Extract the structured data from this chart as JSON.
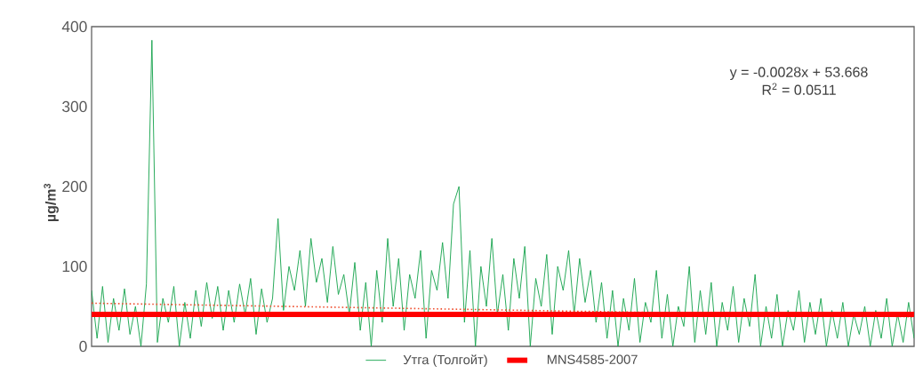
{
  "chart_data": {
    "type": "line",
    "ylabel": "µg/m$^{3}$",
    "ylim": [
      0,
      400
    ],
    "yticks": [
      0,
      100,
      200,
      300,
      400
    ],
    "categories": [
      null,
      null,
      null,
      null,
      null,
      null,
      null,
      null,
      null,
      null,
      null,
      null,
      null,
      null,
      null,
      null,
      null,
      null,
      null,
      null,
      null,
      null,
      null,
      null,
      null,
      null,
      null,
      null,
      null,
      null,
      null,
      null,
      null,
      null,
      null,
      null,
      null,
      null,
      null,
      null,
      null,
      null,
      null,
      null,
      null,
      null,
      null,
      null,
      null,
      null,
      null,
      null,
      null,
      null,
      null,
      null,
      null,
      null,
      null,
      null,
      null,
      null,
      null,
      null,
      null,
      null,
      null,
      null,
      null,
      null,
      null,
      null,
      null,
      null,
      null,
      null,
      null,
      null,
      null,
      null,
      null,
      null,
      null,
      null,
      null,
      null,
      null,
      null,
      null,
      null,
      null,
      null,
      null,
      null,
      null,
      null,
      null,
      null,
      null,
      null,
      null,
      null,
      null,
      null,
      null,
      null,
      null,
      null,
      null,
      null,
      null,
      null,
      null,
      null,
      null,
      null,
      null,
      null,
      null,
      null,
      null,
      null,
      null,
      null,
      null,
      null,
      null,
      null,
      null,
      null,
      null,
      null,
      null,
      null,
      null,
      null,
      null,
      null,
      null,
      null,
      null,
      null,
      null,
      null,
      null,
      null,
      null,
      null,
      null,
      null,
      null
    ],
    "tick_labels": "y",
    "grid": false,
    "legend": "bottom",
    "marker": "none",
    "annotations": [
      "y = -0.0028x + 53.668",
      "R$^{2}$ = 0.0511"
    ],
    "ref_lines": [
      {
        "axis": "y",
        "value": 40,
        "label": "MNS4585-2007",
        "color": "#ff0000"
      }
    ],
    "series": [
      {
        "name": "Утга (Толгойт)",
        "color": "#1aa550",
        "line_style": "solid",
        "values": [
          70,
          10,
          75,
          5,
          60,
          20,
          72,
          15,
          50,
          0,
          78,
          383,
          5,
          60,
          30,
          75,
          0,
          55,
          10,
          70,
          25,
          80,
          35,
          75,
          20,
          70,
          30,
          78,
          40,
          85,
          15,
          72,
          30,
          60,
          160,
          45,
          100,
          70,
          120,
          50,
          135,
          80,
          110,
          55,
          125,
          65,
          90,
          40,
          105,
          20,
          80,
          0,
          95,
          30,
          135,
          50,
          110,
          20,
          90,
          60,
          120,
          10,
          95,
          70,
          130,
          60,
          178,
          200,
          30,
          120,
          0,
          100,
          50,
          135,
          40,
          90,
          20,
          110,
          60,
          125,
          0,
          85,
          50,
          115,
          15,
          100,
          70,
          120,
          40,
          110,
          55,
          95,
          30,
          80,
          10,
          70,
          0,
          60,
          20,
          85,
          5,
          55,
          30,
          95,
          10,
          65,
          0,
          50,
          25,
          100,
          5,
          70,
          15,
          80,
          0,
          55,
          20,
          75,
          5,
          60,
          25,
          90,
          0,
          50,
          10,
          65,
          0,
          45,
          20,
          70,
          5,
          55,
          15,
          60,
          0,
          45,
          10,
          55,
          0,
          40,
          15,
          50,
          0,
          45,
          10,
          60,
          0,
          40,
          5,
          55,
          10
        ]
      },
      {
        "color": "#f05030",
        "line_style": "dotted",
        "values": [
          54,
          null,
          null,
          null,
          null,
          null,
          null,
          null,
          null,
          null,
          null,
          null,
          null,
          null,
          null,
          null,
          null,
          null,
          null,
          null,
          null,
          null,
          null,
          null,
          null,
          null,
          null,
          null,
          null,
          null,
          null,
          null,
          null,
          null,
          null,
          null,
          null,
          null,
          null,
          null,
          null,
          null,
          null,
          null,
          null,
          null,
          null,
          null,
          null,
          null,
          null,
          null,
          null,
          null,
          null,
          null,
          null,
          null,
          null,
          null,
          null,
          null,
          null,
          null,
          null,
          null,
          null,
          null,
          null,
          null,
          null,
          null,
          null,
          null,
          null,
          null,
          null,
          null,
          null,
          null,
          null,
          null,
          null,
          null,
          null,
          null,
          null,
          null,
          null,
          null,
          null,
          null,
          null,
          null,
          null,
          null,
          null,
          null,
          null,
          null,
          null,
          null,
          null,
          null,
          null,
          null,
          null,
          null,
          null,
          null,
          null,
          null,
          null,
          null,
          null,
          null,
          null,
          null,
          null,
          null,
          null,
          null,
          null,
          null,
          null,
          null,
          null,
          null,
          null,
          null,
          null,
          null,
          null,
          null,
          null,
          null,
          null,
          null,
          null,
          null,
          null,
          null,
          null,
          null,
          null,
          null,
          null,
          null,
          null,
          null,
          37
        ]
      }
    ]
  }
}
